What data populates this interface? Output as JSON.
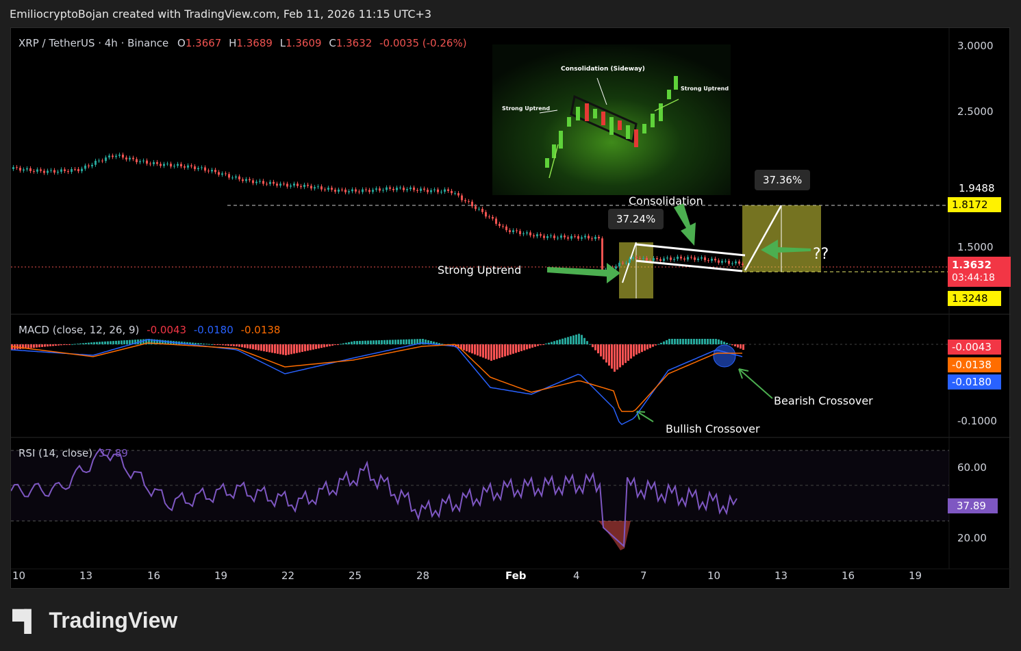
{
  "caption": "EmiliocryptoBojan created with TradingView.com, Feb 11, 2026 11:15 UTC+3",
  "symbol": {
    "title": "XRP / TetherUS · 4h · Binance",
    "o_label": "O",
    "o": "1.3667",
    "h_label": "H",
    "h": "1.3689",
    "l_label": "L",
    "l": "1.3609",
    "c_label": "C",
    "c": "1.3632",
    "change": "-0.0035 (-0.26%)"
  },
  "price_axis": {
    "ticks": [
      "3.0000",
      "2.5000",
      "1.5000"
    ],
    "tag_top": "1.9488",
    "tag_target": "1.8172",
    "tag_current": "1.3632",
    "tag_timer": "03:44:18",
    "tag_low": "1.3248"
  },
  "inset": {
    "consolidation": "Consolidation (Sideway)",
    "strong_left": "Strong Uptrend",
    "strong_right": "Strong Uptrend"
  },
  "annotations": {
    "consolidation": "Consolidation",
    "strong_uptrend": "Strong Uptrend",
    "pct_left": "37.24%",
    "pct_right": "37.36%",
    "question": "??",
    "bearish": "Bearish Crossover",
    "bullish": "Bullish Crossover"
  },
  "macd": {
    "title": "MACD (close, 12, 26, 9)",
    "hist": "-0.0043",
    "macd": "-0.0180",
    "signal": "-0.0138",
    "tag1": "-0.0043",
    "tag2": "-0.0138",
    "tag3": "-0.0180",
    "tick": "-0.1000"
  },
  "rsi": {
    "title": "RSI (14, close)",
    "value": "37.89",
    "tick_high": "60.00",
    "tick_low": "20.00",
    "tag": "37.89"
  },
  "time_axis": [
    "10",
    "13",
    "16",
    "19",
    "22",
    "25",
    "28",
    "Feb",
    "4",
    "7",
    "10",
    "13",
    "16",
    "19"
  ],
  "footer": "TradingView",
  "colors": {
    "up": "#26a69a",
    "down": "#ef5350",
    "macd": "#2962ff",
    "signal": "#ff6d00",
    "rsi": "#7e57c2",
    "highlight": "#fff200"
  },
  "chart_data": {
    "type": "line",
    "title": "XRP / TetherUS · 4h · Binance",
    "x": [
      "10",
      "13",
      "16",
      "19",
      "22",
      "25",
      "28",
      "Feb",
      "4",
      "7",
      "10"
    ],
    "series": [
      {
        "name": "XRP / TetherUS",
        "values": [
          2.08,
          2.07,
          2.18,
          2.05,
          1.95,
          1.92,
          1.93,
          1.62,
          1.55,
          1.42,
          1.39
        ]
      },
      {
        "name": "RSI (14, close)",
        "values": [
          47,
          48,
          70,
          40,
          48,
          40,
          58,
          35,
          48,
          52,
          38
        ]
      }
    ]
  }
}
